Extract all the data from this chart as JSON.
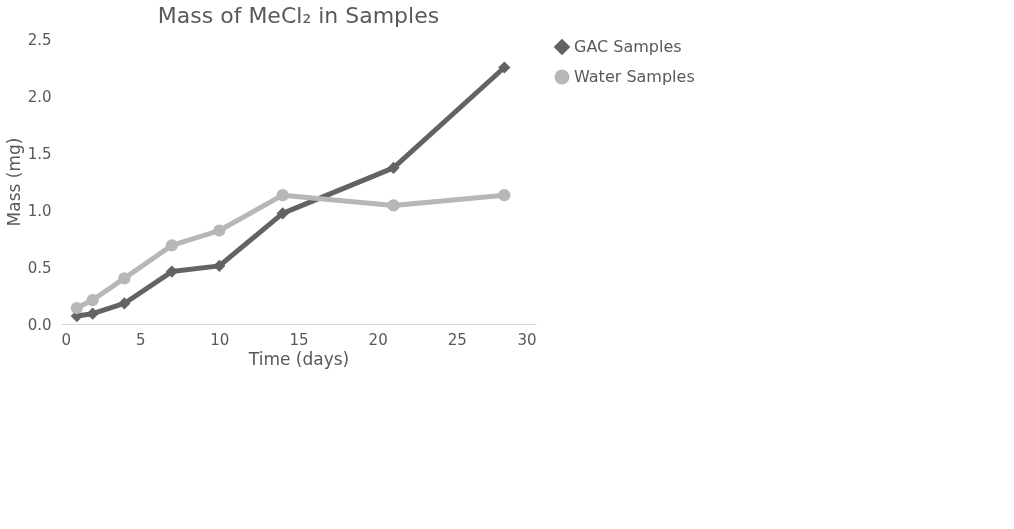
{
  "chart_data": {
    "type": "line",
    "title": "Mass of MeCl₂ in Samples",
    "xlabel": "Time (days)",
    "ylabel": "Mass (mg)",
    "xlim": [
      0,
      30
    ],
    "xticks": [
      0,
      5,
      10,
      15,
      20,
      25,
      30
    ],
    "ylim": [
      0,
      2.5
    ],
    "yticks": [
      {
        "value": 0,
        "label": "0.0"
      },
      {
        "value": 0.5,
        "label": "0.5"
      },
      {
        "value": 1,
        "label": "1.0"
      },
      {
        "value": 1.5,
        "label": "1.5"
      },
      {
        "value": 2,
        "label": "2.0"
      },
      {
        "value": 2.5,
        "label": "2.5"
      }
    ],
    "x": [
      1,
      2,
      4,
      7,
      10,
      14,
      21,
      28
    ],
    "series": [
      {
        "name": "GAC Samples",
        "color": "#636363",
        "marker": "diamond",
        "values": [
          0.07,
          0.09,
          0.18,
          0.46,
          0.51,
          0.97,
          1.37,
          2.25
        ]
      },
      {
        "name": "Water Samples",
        "color": "#b7b7b7",
        "marker": "circle",
        "values": [
          0.14,
          0.21,
          0.4,
          0.69,
          0.82,
          1.13,
          1.04,
          1.13
        ]
      }
    ],
    "grid": false,
    "legend": "right",
    "line_style": "solid"
  }
}
